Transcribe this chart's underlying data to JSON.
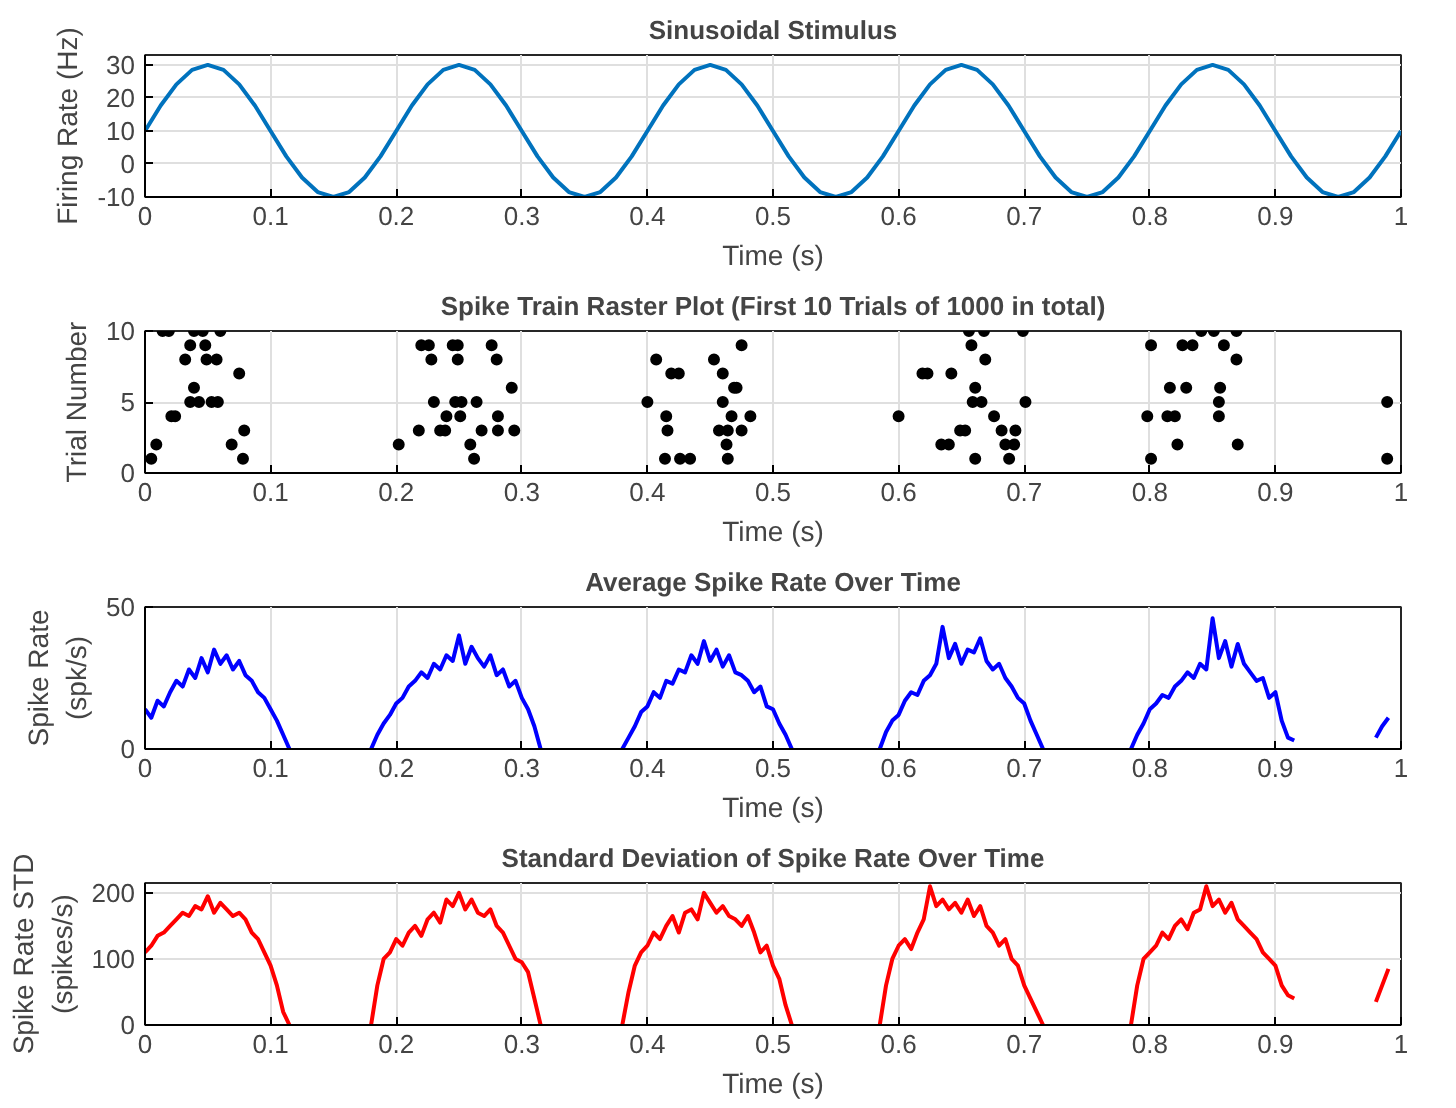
{
  "chart_data": [
    {
      "type": "line",
      "title": "Sinusoidal Stimulus",
      "xlabel": "Time (s)",
      "ylabel": "Firing Rate (Hz)",
      "xlim": [
        0,
        1
      ],
      "ylim": [
        -10,
        33
      ],
      "xticks": [
        0,
        0.1,
        0.2,
        0.3,
        0.4,
        0.5,
        0.6,
        0.7,
        0.8,
        0.9,
        1
      ],
      "yticks": [
        -10,
        0,
        10,
        20,
        30
      ],
      "grid": true,
      "x": [
        0,
        0.0125,
        0.025,
        0.0375,
        0.05,
        0.0625,
        0.075,
        0.0875,
        0.1,
        0.1125,
        0.125,
        0.1375,
        0.15,
        0.1625,
        0.175,
        0.1875,
        0.2,
        0.2125,
        0.225,
        0.2375,
        0.25,
        0.2625,
        0.275,
        0.2875,
        0.3,
        0.3125,
        0.325,
        0.3375,
        0.35,
        0.3625,
        0.375,
        0.3875,
        0.4,
        0.4125,
        0.425,
        0.4375,
        0.45,
        0.4625,
        0.475,
        0.4875,
        0.5,
        0.5125,
        0.525,
        0.5375,
        0.55,
        0.5625,
        0.575,
        0.5875,
        0.6,
        0.6125,
        0.625,
        0.6375,
        0.65,
        0.6625,
        0.675,
        0.6875,
        0.7,
        0.7125,
        0.725,
        0.7375,
        0.75,
        0.7625,
        0.775,
        0.7875,
        0.8,
        0.8125,
        0.825,
        0.8375,
        0.85,
        0.8625,
        0.875,
        0.8875,
        0.9,
        0.9125,
        0.925,
        0.9375,
        0.95,
        0.9625,
        0.975,
        0.9875,
        1
      ],
      "series": [
        {
          "color": "#0072bd",
          "values": [
            10,
            17.7,
            24.1,
            28.5,
            30,
            28.5,
            24.1,
            17.7,
            10,
            2.3,
            -4.1,
            -8.5,
            -10,
            -8.5,
            -4.1,
            2.3,
            10,
            17.7,
            24.1,
            28.5,
            30,
            28.5,
            24.1,
            17.7,
            10,
            2.3,
            -4.1,
            -8.5,
            -10,
            -8.5,
            -4.1,
            2.3,
            10,
            17.7,
            24.1,
            28.5,
            30,
            28.5,
            24.1,
            17.7,
            10,
            2.3,
            -4.1,
            -8.5,
            -10,
            -8.5,
            -4.1,
            2.3,
            10,
            17.7,
            24.1,
            28.5,
            30,
            28.5,
            24.1,
            17.7,
            10,
            2.3,
            -4.1,
            -8.5,
            -10,
            -8.5,
            -4.1,
            2.3,
            10,
            17.7,
            24.1,
            28.5,
            30,
            28.5,
            24.1,
            17.7,
            10,
            2.3,
            -4.1,
            -8.5,
            -10,
            -8.5,
            -4.1,
            2.3,
            10
          ]
        }
      ]
    },
    {
      "type": "scatter",
      "title": "Spike Train Raster Plot (First 10 Trials of 1000 in total)",
      "xlabel": "Time (s)",
      "ylabel": "Trial Number",
      "xlim": [
        0,
        1
      ],
      "ylim": [
        0,
        10
      ],
      "xticks": [
        0,
        0.1,
        0.2,
        0.3,
        0.4,
        0.5,
        0.6,
        0.7,
        0.8,
        0.9,
        1
      ],
      "yticks": [
        0,
        5,
        10
      ],
      "grid": true,
      "marker": "circle",
      "x": [
        0.005,
        0.009,
        0.014,
        0.019,
        0.021,
        0.024,
        0.032,
        0.036,
        0.039,
        0.046,
        0.036,
        0.043,
        0.039,
        0.048,
        0.049,
        0.053,
        0.058,
        0.057,
        0.06,
        0.069,
        0.075,
        0.078,
        0.079,
        0.202,
        0.218,
        0.22,
        0.226,
        0.228,
        0.23,
        0.235,
        0.239,
        0.24,
        0.245,
        0.249,
        0.247,
        0.252,
        0.249,
        0.251,
        0.259,
        0.262,
        0.264,
        0.268,
        0.276,
        0.28,
        0.281,
        0.281,
        0.292,
        0.294,
        0.4,
        0.407,
        0.415,
        0.416,
        0.414,
        0.419,
        0.425,
        0.426,
        0.434,
        0.453,
        0.46,
        0.457,
        0.46,
        0.464,
        0.463,
        0.464,
        0.467,
        0.469,
        0.471,
        0.475,
        0.475,
        0.482,
        0.6,
        0.619,
        0.623,
        0.634,
        0.64,
        0.642,
        0.649,
        0.653,
        0.656,
        0.668,
        0.658,
        0.661,
        0.659,
        0.666,
        0.661,
        0.669,
        0.676,
        0.682,
        0.685,
        0.692,
        0.688,
        0.693,
        0.699,
        0.701,
        0.798,
        0.801,
        0.801,
        0.814,
        0.82,
        0.816,
        0.822,
        0.826,
        0.829,
        0.834,
        0.841,
        0.851,
        0.855,
        0.856,
        0.855,
        0.859,
        0.869,
        0.869,
        0.87,
        0.989,
        0.989
      ],
      "series": [
        {
          "color": "#000000",
          "values": [
            1,
            2,
            10,
            10,
            4,
            4,
            8,
            9,
            10,
            10,
            5,
            5,
            6,
            9,
            8,
            5,
            5,
            8,
            10,
            2,
            7,
            1,
            3,
            2,
            3,
            9,
            9,
            8,
            5,
            3,
            3,
            4,
            9,
            9,
            5,
            5,
            8,
            4,
            2,
            1,
            5,
            3,
            9,
            8,
            4,
            3,
            6,
            3,
            5,
            8,
            4,
            3,
            1,
            7,
            7,
            1,
            1,
            8,
            7,
            3,
            5,
            3,
            2,
            1,
            4,
            6,
            6,
            9,
            3,
            4,
            4,
            7,
            7,
            2,
            2,
            7,
            3,
            3,
            10,
            10,
            9,
            6,
            5,
            5,
            1,
            8,
            4,
            3,
            2,
            2,
            1,
            3,
            10,
            5,
            4,
            1,
            9,
            4,
            4,
            6,
            2,
            9,
            6,
            9,
            10,
            10,
            5,
            6,
            4,
            9,
            8,
            10,
            2,
            5,
            1
          ]
        }
      ]
    },
    {
      "type": "line",
      "title": "Average Spike Rate Over Time",
      "xlabel": "Time (s)",
      "ylabel": "Spike Rate (spk/s)",
      "xlim": [
        0,
        1
      ],
      "ylim": [
        0,
        50
      ],
      "xticks": [
        0,
        0.1,
        0.2,
        0.3,
        0.4,
        0.5,
        0.6,
        0.7,
        0.8,
        0.9,
        1
      ],
      "yticks": [
        0,
        50
      ],
      "grid": true,
      "x": [
        0,
        0.005,
        0.01,
        0.015,
        0.02,
        0.025,
        0.03,
        0.035,
        0.04,
        0.045,
        0.05,
        0.055,
        0.06,
        0.065,
        0.07,
        0.075,
        0.08,
        0.085,
        0.09,
        0.095,
        0.1,
        0.105,
        0.11,
        0.115,
        0.12,
        0.125,
        0.13,
        0.135,
        0.14,
        0.145,
        0.15,
        0.155,
        0.16,
        0.165,
        0.17,
        0.175,
        0.18,
        0.185,
        0.19,
        0.195,
        0.2,
        0.205,
        0.21,
        0.215,
        0.22,
        0.225,
        0.23,
        0.235,
        0.24,
        0.245,
        0.25,
        0.255,
        0.26,
        0.265,
        0.27,
        0.275,
        0.28,
        0.285,
        0.29,
        0.295,
        0.3,
        0.305,
        0.31,
        0.315,
        0.32,
        0.325,
        0.33,
        0.335,
        0.34,
        0.345,
        0.35,
        0.355,
        0.36,
        0.365,
        0.37,
        0.375,
        0.38,
        0.385,
        0.39,
        0.395,
        0.4,
        0.405,
        0.41,
        0.415,
        0.42,
        0.425,
        0.43,
        0.435,
        0.44,
        0.445,
        0.45,
        0.455,
        0.46,
        0.465,
        0.47,
        0.475,
        0.48,
        0.485,
        0.49,
        0.495,
        0.5,
        0.505,
        0.51,
        0.515,
        0.52,
        0.525,
        0.53,
        0.535,
        0.54,
        0.545,
        0.55,
        0.555,
        0.56,
        0.565,
        0.57,
        0.575,
        0.58,
        0.585,
        0.59,
        0.595,
        0.6,
        0.605,
        0.61,
        0.615,
        0.62,
        0.625,
        0.63,
        0.635,
        0.64,
        0.645,
        0.65,
        0.655,
        0.66,
        0.665,
        0.67,
        0.675,
        0.68,
        0.685,
        0.69,
        0.695,
        0.7,
        0.705,
        0.71,
        0.715,
        0.72,
        0.725,
        0.73,
        0.735,
        0.74,
        0.745,
        0.75,
        0.755,
        0.76,
        0.765,
        0.77,
        0.775,
        0.78,
        0.785,
        0.79,
        0.795,
        0.8,
        0.805,
        0.81,
        0.815,
        0.82,
        0.825,
        0.83,
        0.835,
        0.84,
        0.845,
        0.85,
        0.855,
        0.86,
        0.865,
        0.87,
        0.875,
        0.88,
        0.885,
        0.89,
        0.895,
        0.9,
        0.905,
        0.91,
        0.915
      ],
      "series": [
        {
          "color": "#0000ff",
          "values": [
            14,
            11,
            17,
            15,
            20,
            24,
            22,
            28,
            25,
            32,
            27,
            35,
            30,
            33,
            28,
            31,
            26,
            24,
            20,
            18,
            14,
            10,
            5,
            0,
            null,
            null,
            null,
            null,
            null,
            null,
            null,
            null,
            null,
            null,
            null,
            null,
            0,
            5,
            9,
            12,
            16,
            18,
            22,
            24,
            27,
            25,
            30,
            28,
            33,
            31,
            40,
            30,
            36,
            32,
            29,
            33,
            26,
            28,
            22,
            24,
            18,
            14,
            8,
            0,
            null,
            null,
            null,
            null,
            null,
            null,
            null,
            null,
            null,
            null,
            null,
            null,
            0,
            4,
            8,
            13,
            15,
            20,
            18,
            24,
            23,
            28,
            27,
            33,
            30,
            38,
            31,
            35,
            29,
            33,
            27,
            26,
            24,
            20,
            22,
            15,
            14,
            9,
            5,
            0,
            null,
            null,
            null,
            null,
            null,
            null,
            null,
            null,
            null,
            null,
            null,
            null,
            null,
            0,
            6,
            10,
            12,
            17,
            20,
            19,
            24,
            26,
            30,
            43,
            32,
            37,
            30,
            35,
            34,
            39,
            31,
            28,
            30,
            25,
            22,
            18,
            16,
            10,
            5,
            0,
            null,
            null,
            null,
            null,
            null,
            null,
            null,
            null,
            null,
            null,
            null,
            null,
            null,
            0,
            5,
            9,
            14,
            16,
            19,
            18,
            22,
            24,
            27,
            25,
            30,
            28,
            46,
            32,
            38,
            29,
            37,
            30,
            27,
            24,
            25,
            18,
            20,
            10,
            4,
            3
          ]
        },
        {
          "color": "#0000ff",
          "x": [
            0.98,
            0.985,
            0.99
          ],
          "values": [
            4,
            8,
            11
          ]
        }
      ]
    },
    {
      "type": "line",
      "title": "Standard Deviation of Spike Rate Over Time",
      "xlabel": "Time (s)",
      "ylabel": "Spike Rate STD (spikes/s)",
      "xlim": [
        0,
        1
      ],
      "ylim": [
        0,
        215
      ],
      "xticks": [
        0,
        0.1,
        0.2,
        0.3,
        0.4,
        0.5,
        0.6,
        0.7,
        0.8,
        0.9,
        1
      ],
      "yticks": [
        0,
        100,
        200
      ],
      "grid": true,
      "x": [
        0,
        0.005,
        0.01,
        0.015,
        0.02,
        0.025,
        0.03,
        0.035,
        0.04,
        0.045,
        0.05,
        0.055,
        0.06,
        0.065,
        0.07,
        0.075,
        0.08,
        0.085,
        0.09,
        0.095,
        0.1,
        0.105,
        0.11,
        0.115,
        0.12,
        0.125,
        0.13,
        0.135,
        0.14,
        0.145,
        0.15,
        0.155,
        0.16,
        0.165,
        0.17,
        0.175,
        0.18,
        0.185,
        0.19,
        0.195,
        0.2,
        0.205,
        0.21,
        0.215,
        0.22,
        0.225,
        0.23,
        0.235,
        0.24,
        0.245,
        0.25,
        0.255,
        0.26,
        0.265,
        0.27,
        0.275,
        0.28,
        0.285,
        0.29,
        0.295,
        0.3,
        0.305,
        0.31,
        0.315,
        0.32,
        0.325,
        0.33,
        0.335,
        0.34,
        0.345,
        0.35,
        0.355,
        0.36,
        0.365,
        0.37,
        0.375,
        0.38,
        0.385,
        0.39,
        0.395,
        0.4,
        0.405,
        0.41,
        0.415,
        0.42,
        0.425,
        0.43,
        0.435,
        0.44,
        0.445,
        0.45,
        0.455,
        0.46,
        0.465,
        0.47,
        0.475,
        0.48,
        0.485,
        0.49,
        0.495,
        0.5,
        0.505,
        0.51,
        0.515,
        0.52,
        0.525,
        0.53,
        0.535,
        0.54,
        0.545,
        0.55,
        0.555,
        0.56,
        0.565,
        0.57,
        0.575,
        0.58,
        0.585,
        0.59,
        0.595,
        0.6,
        0.605,
        0.61,
        0.615,
        0.62,
        0.625,
        0.63,
        0.635,
        0.64,
        0.645,
        0.65,
        0.655,
        0.66,
        0.665,
        0.67,
        0.675,
        0.68,
        0.685,
        0.69,
        0.695,
        0.7,
        0.705,
        0.71,
        0.715,
        0.72,
        0.725,
        0.73,
        0.735,
        0.74,
        0.745,
        0.75,
        0.755,
        0.76,
        0.765,
        0.77,
        0.775,
        0.78,
        0.785,
        0.79,
        0.795,
        0.8,
        0.805,
        0.81,
        0.815,
        0.82,
        0.825,
        0.83,
        0.835,
        0.84,
        0.845,
        0.85,
        0.855,
        0.86,
        0.865,
        0.87,
        0.875,
        0.88,
        0.885,
        0.89,
        0.895,
        0.9,
        0.905,
        0.91,
        0.915
      ],
      "series": [
        {
          "color": "#ff0000",
          "values": [
            110,
            120,
            135,
            140,
            150,
            160,
            170,
            165,
            180,
            175,
            195,
            170,
            185,
            175,
            165,
            170,
            160,
            140,
            130,
            110,
            90,
            60,
            20,
            0,
            null,
            null,
            null,
            null,
            null,
            null,
            null,
            null,
            null,
            null,
            null,
            null,
            0,
            60,
            100,
            110,
            130,
            120,
            140,
            150,
            135,
            160,
            170,
            155,
            190,
            180,
            200,
            175,
            190,
            170,
            165,
            175,
            150,
            140,
            120,
            100,
            95,
            80,
            40,
            0,
            null,
            null,
            null,
            null,
            null,
            null,
            null,
            null,
            null,
            null,
            null,
            null,
            0,
            50,
            90,
            110,
            120,
            140,
            130,
            150,
            165,
            140,
            170,
            175,
            160,
            200,
            185,
            170,
            180,
            165,
            160,
            150,
            165,
            140,
            110,
            120,
            90,
            70,
            30,
            0,
            null,
            null,
            null,
            null,
            null,
            null,
            null,
            null,
            null,
            null,
            null,
            null,
            null,
            0,
            60,
            100,
            120,
            130,
            115,
            140,
            160,
            210,
            180,
            190,
            175,
            185,
            170,
            190,
            165,
            180,
            150,
            140,
            120,
            130,
            100,
            90,
            60,
            40,
            20,
            0,
            null,
            null,
            null,
            null,
            null,
            null,
            null,
            null,
            null,
            null,
            null,
            null,
            null,
            0,
            60,
            100,
            110,
            120,
            140,
            130,
            150,
            160,
            145,
            170,
            175,
            210,
            180,
            190,
            170,
            185,
            160,
            150,
            140,
            130,
            110,
            100,
            90,
            60,
            45,
            40
          ]
        },
        {
          "color": "#ff0000",
          "x": [
            0.98,
            0.985,
            0.99
          ],
          "values": [
            35,
            60,
            85
          ]
        }
      ]
    }
  ]
}
